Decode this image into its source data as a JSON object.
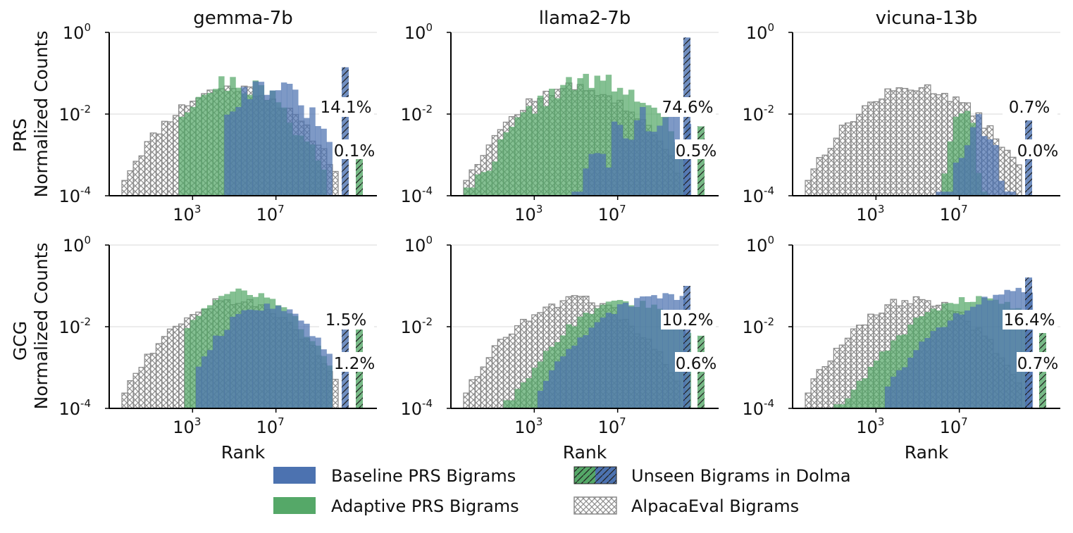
{
  "colors": {
    "baseline": "#4c72b0",
    "adaptive": "#55a868",
    "alpaca": "#8c8c8c",
    "grid": "#d9d9d9",
    "axis": "#000000"
  },
  "legend": {
    "baseline": "Baseline PRS Bigrams",
    "adaptive": "Adaptive PRS Bigrams",
    "unseen": "Unseen Bigrams in Dolma",
    "alpaca": "AlpacaEval Bigrams"
  },
  "chart_data": [
    {
      "type": "bar",
      "row": "PRS",
      "title": "gemma-7b",
      "xlabel": "",
      "ylabel": "Normalized Counts",
      "yscale": "log",
      "ylim": [
        0.0001,
        1
      ],
      "yticks": [
        "10^0",
        "10^-2",
        "10^-4"
      ],
      "xscale": "log",
      "xlim_log10": [
        -1,
        11
      ],
      "xticks": [
        "10^3",
        "10^7"
      ],
      "annotations": {
        "baseline_unseen": "14.1%",
        "adaptive_unseen": "0.1%"
      },
      "unseen_values": {
        "baseline": 0.14,
        "adaptive": 0.001
      }
    },
    {
      "type": "bar",
      "row": "PRS",
      "title": "llama2-7b",
      "xlabel": "",
      "ylabel": "",
      "yscale": "log",
      "ylim": [
        0.0001,
        1
      ],
      "yticks": [
        "10^0",
        "10^-2",
        "10^-4"
      ],
      "xscale": "log",
      "xlim_log10": [
        -1,
        11
      ],
      "xticks": [
        "10^3",
        "10^7"
      ],
      "annotations": {
        "baseline_unseen": "74.6%",
        "adaptive_unseen": "0.5%"
      },
      "unseen_values": {
        "baseline": 0.75,
        "adaptive": 0.005
      }
    },
    {
      "type": "bar",
      "row": "PRS",
      "title": "vicuna-13b",
      "xlabel": "",
      "ylabel": "",
      "yscale": "log",
      "ylim": [
        0.0001,
        1
      ],
      "yticks": [
        "10^0",
        "10^-2",
        "10^-4"
      ],
      "xscale": "log",
      "xlim_log10": [
        -1,
        11
      ],
      "xticks": [
        "10^3",
        "10^7"
      ],
      "annotations": {
        "baseline_unseen": "0.7%",
        "adaptive_unseen": "0.0%"
      },
      "unseen_values": {
        "baseline": 0.007,
        "adaptive": 0
      }
    },
    {
      "type": "bar",
      "row": "GCG",
      "title": "",
      "xlabel": "Rank",
      "ylabel": "Normalized Counts",
      "yscale": "log",
      "ylim": [
        0.0001,
        1
      ],
      "yticks": [
        "10^0",
        "10^-2",
        "10^-4"
      ],
      "xscale": "log",
      "xlim_log10": [
        -1,
        11
      ],
      "xticks": [
        "10^3",
        "10^7"
      ],
      "annotations": {
        "baseline_unseen": "1.5%",
        "adaptive_unseen": "1.2%"
      },
      "unseen_values": {
        "baseline": 0.015,
        "adaptive": 0.012
      }
    },
    {
      "type": "bar",
      "row": "GCG",
      "title": "",
      "xlabel": "Rank",
      "ylabel": "",
      "yscale": "log",
      "ylim": [
        0.0001,
        1
      ],
      "yticks": [
        "10^0",
        "10^-2",
        "10^-4"
      ],
      "xscale": "log",
      "xlim_log10": [
        -1,
        11
      ],
      "xticks": [
        "10^3",
        "10^7"
      ],
      "annotations": {
        "baseline_unseen": "10.2%",
        "adaptive_unseen": "0.6%"
      },
      "unseen_values": {
        "baseline": 0.1,
        "adaptive": 0.006
      }
    },
    {
      "type": "bar",
      "row": "GCG",
      "title": "",
      "xlabel": "Rank",
      "ylabel": "",
      "yscale": "log",
      "ylim": [
        0.0001,
        1
      ],
      "yticks": [
        "10^0",
        "10^-2",
        "10^-4"
      ],
      "xscale": "log",
      "xlim_log10": [
        -1,
        11
      ],
      "xticks": [
        "10^3",
        "10^7"
      ],
      "annotations": {
        "baseline_unseen": "16.4%",
        "adaptive_unseen": "0.7%"
      },
      "unseen_values": {
        "baseline": 0.16,
        "adaptive": 0.007
      }
    }
  ]
}
